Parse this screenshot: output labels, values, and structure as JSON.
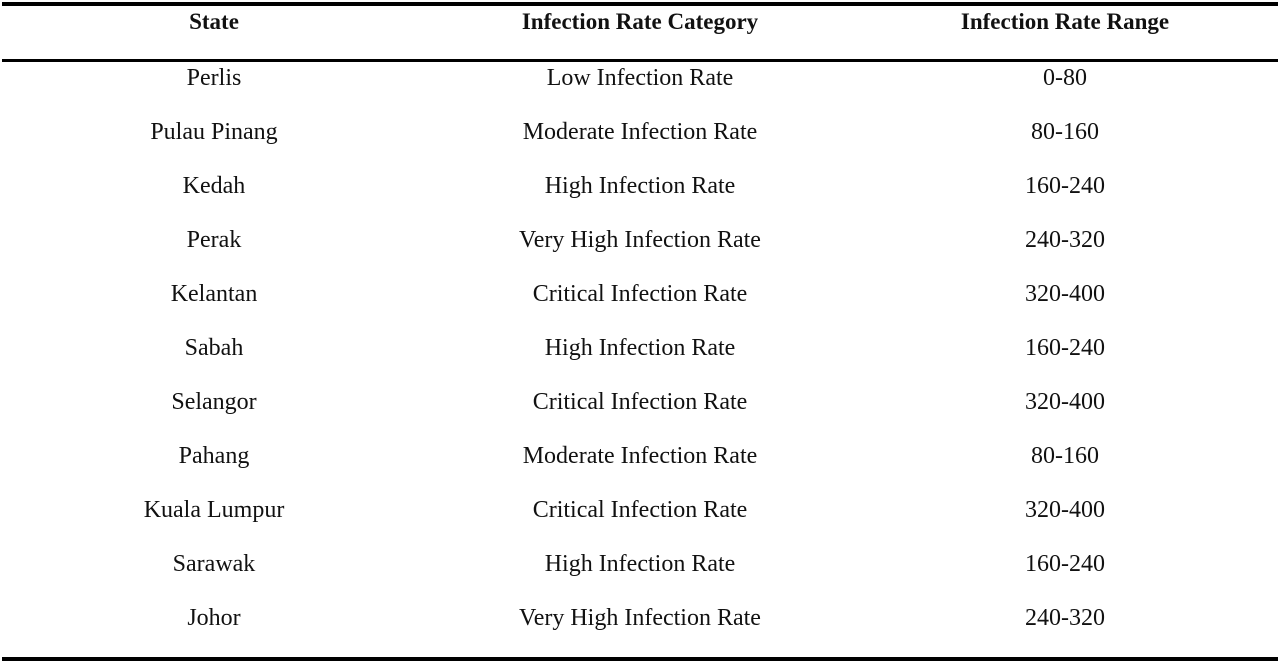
{
  "table": {
    "headers": {
      "state": "State",
      "category": "Infection Rate Category",
      "range": "Infection Rate Range"
    },
    "rows": [
      {
        "state": "Perlis",
        "category": "Low Infection Rate",
        "range": "0-80"
      },
      {
        "state": "Pulau Pinang",
        "category": "Moderate Infection Rate",
        "range": "80-160"
      },
      {
        "state": "Kedah",
        "category": "High Infection Rate",
        "range": "160-240"
      },
      {
        "state": "Perak",
        "category": "Very High Infection Rate",
        "range": "240-320"
      },
      {
        "state": "Kelantan",
        "category": "Critical Infection Rate",
        "range": "320-400"
      },
      {
        "state": "Sabah",
        "category": "High Infection Rate",
        "range": "160-240"
      },
      {
        "state": "Selangor",
        "category": "Critical Infection Rate",
        "range": "320-400"
      },
      {
        "state": "Pahang",
        "category": "Moderate Infection Rate",
        "range": "80-160"
      },
      {
        "state": "Kuala Lumpur",
        "category": "Critical Infection Rate",
        "range": "320-400"
      },
      {
        "state": "Sarawak",
        "category": "High Infection Rate",
        "range": "160-240"
      },
      {
        "state": "Johor",
        "category": "Very High Infection Rate",
        "range": "240-320"
      }
    ]
  }
}
